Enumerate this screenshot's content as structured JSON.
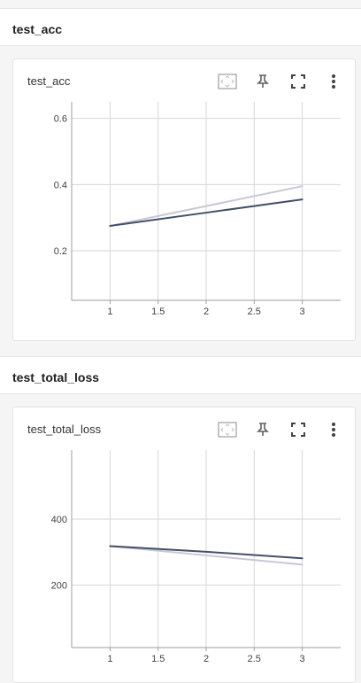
{
  "sections": [
    {
      "title": "test_acc"
    },
    {
      "title": "test_total_loss"
    }
  ],
  "chart_data": [
    {
      "type": "line",
      "title": "test_acc",
      "x": [
        1,
        2,
        3
      ],
      "x_ticks": [
        "1",
        "1.5",
        "2",
        "2.5",
        "3"
      ],
      "x_tick_values": [
        1,
        1.5,
        2,
        2.5,
        3
      ],
      "xlim": [
        0.6,
        3.4
      ],
      "ylim": [
        0.05,
        0.65
      ],
      "y_ticks": [
        "0.2",
        "0.4",
        "0.6"
      ],
      "y_tick_values": [
        0.2,
        0.4,
        0.6
      ],
      "series": [
        {
          "values": [
            0.275,
            0.315,
            0.355
          ],
          "color": "#425066"
        },
        {
          "values": [
            0.275,
            0.335,
            0.395
          ],
          "color": "#c8c8d6"
        }
      ],
      "grid": true
    },
    {
      "type": "line",
      "title": "test_total_loss",
      "x": [
        1,
        2,
        3
      ],
      "x_ticks": [
        "1",
        "1.5",
        "2",
        "2.5",
        "3"
      ],
      "x_tick_values": [
        1,
        1.5,
        2,
        2.5,
        3
      ],
      "xlim": [
        0.6,
        3.4
      ],
      "ylim": [
        10,
        610
      ],
      "y_ticks": [
        "200",
        "400"
      ],
      "y_tick_values": [
        200,
        400
      ],
      "series": [
        {
          "values": [
            318,
            301,
            281
          ],
          "color": "#425066"
        },
        {
          "values": [
            318,
            290,
            262
          ],
          "color": "#c8c8d6"
        }
      ],
      "grid": true
    }
  ]
}
